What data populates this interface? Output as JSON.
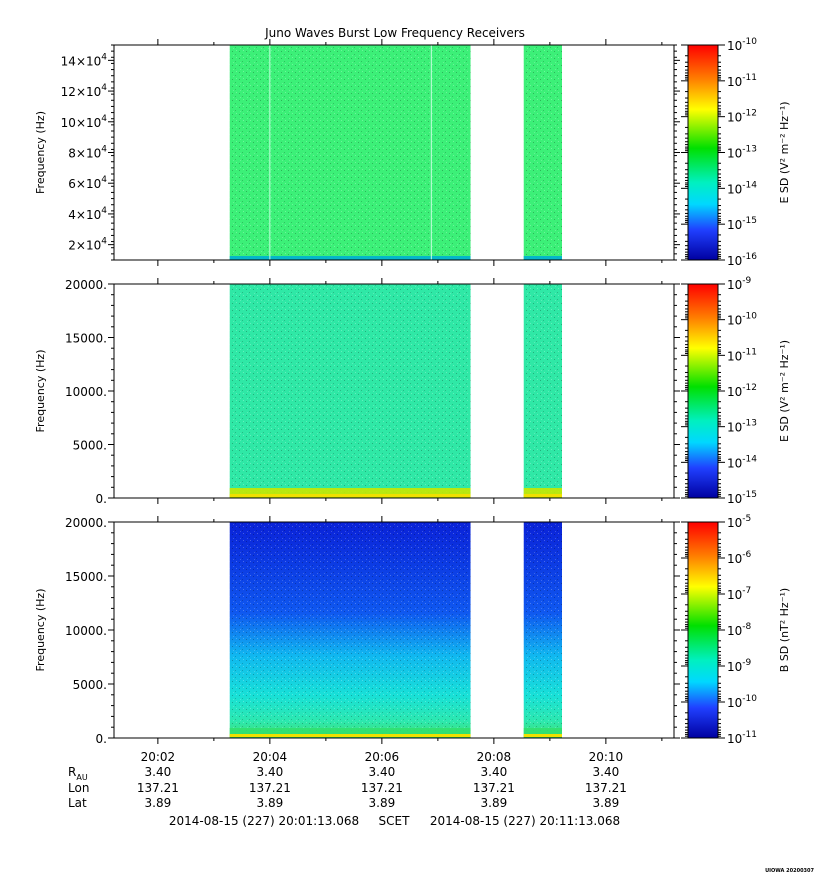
{
  "chart_data": {
    "type": "heatmap",
    "title": "Juno Waves Burst Low Frequency Receivers",
    "xlim": [
      "20:01:13",
      "20:11:13"
    ],
    "x_ticks": [
      "20:02",
      "20:04",
      "20:06",
      "20:08",
      "20:10"
    ],
    "data_intervals": [
      [
        "20:03:17",
        "20:07:35"
      ],
      [
        "20:08:32",
        "20:09:13"
      ]
    ],
    "panels": [
      {
        "ylabel": "Frequency (Hz)",
        "ylim": [
          10000,
          150000
        ],
        "y_ticks": [
          {
            "value": 20000,
            "mant": "2×10",
            "exp": "4"
          },
          {
            "value": 40000,
            "mant": "4×10",
            "exp": "4"
          },
          {
            "value": 60000,
            "mant": "6×10",
            "exp": "4"
          },
          {
            "value": 80000,
            "mant": "8×10",
            "exp": "4"
          },
          {
            "value": 100000,
            "mant": "10×10",
            "exp": "4"
          },
          {
            "value": 120000,
            "mant": "12×10",
            "exp": "4"
          },
          {
            "value": 140000,
            "mant": "14×10",
            "exp": "4"
          }
        ],
        "colorbar_label": "E SD (V² m⁻² Hz⁻¹)",
        "colorbar_exponents": [
          "-10",
          "-11",
          "-12",
          "-13",
          "-14",
          "-15",
          "-16"
        ],
        "background_color": "#3cf078",
        "low_band_color": "#00b0d0"
      },
      {
        "ylabel": "Frequency (Hz)",
        "ylim": [
          0,
          20000
        ],
        "y_ticks": [
          {
            "value": 0,
            "label": "0."
          },
          {
            "value": 5000,
            "label": "5000."
          },
          {
            "value": 10000,
            "label": "10000."
          },
          {
            "value": 15000,
            "label": "15000."
          },
          {
            "value": 20000,
            "label": "20000."
          }
        ],
        "colorbar_label": "E SD (V² m⁻² Hz⁻¹)",
        "colorbar_exponents": [
          "-9",
          "-10",
          "-11",
          "-12",
          "-13",
          "-14",
          "-15"
        ],
        "background_color": "#2fe8a6",
        "low_band_color": "#c8e800"
      },
      {
        "ylabel": "Frequency (Hz)",
        "ylim": [
          0,
          20000
        ],
        "y_ticks": [
          {
            "value": 0,
            "label": "0."
          },
          {
            "value": 5000,
            "label": "5000."
          },
          {
            "value": 10000,
            "label": "10000."
          },
          {
            "value": 15000,
            "label": "15000."
          },
          {
            "value": 20000,
            "label": "20000."
          }
        ],
        "colorbar_label": "B SD (nT² Hz⁻¹)",
        "colorbar_exponents": [
          "-5",
          "-6",
          "-7",
          "-8",
          "-9",
          "-10",
          "-11"
        ],
        "background_color": "#0a30e0",
        "low_band_color": "#30e070"
      }
    ],
    "ephemeris": {
      "rows": [
        {
          "label": "R",
          "sub": "AU",
          "values": [
            "3.40",
            "3.40",
            "3.40",
            "3.40",
            "3.40"
          ]
        },
        {
          "label": "Lon",
          "sub": "",
          "values": [
            "137.21",
            "137.21",
            "137.21",
            "137.21",
            "137.21"
          ]
        },
        {
          "label": "Lat",
          "sub": "",
          "values": [
            "3.89",
            "3.89",
            "3.89",
            "3.89",
            "3.89"
          ]
        }
      ]
    },
    "time_range": {
      "start": "2014-08-15 (227) 20:01:13.068",
      "label": "SCET",
      "end": "2014-08-15 (227) 20:11:13.068"
    },
    "credit": "UIOWA 20200307"
  }
}
